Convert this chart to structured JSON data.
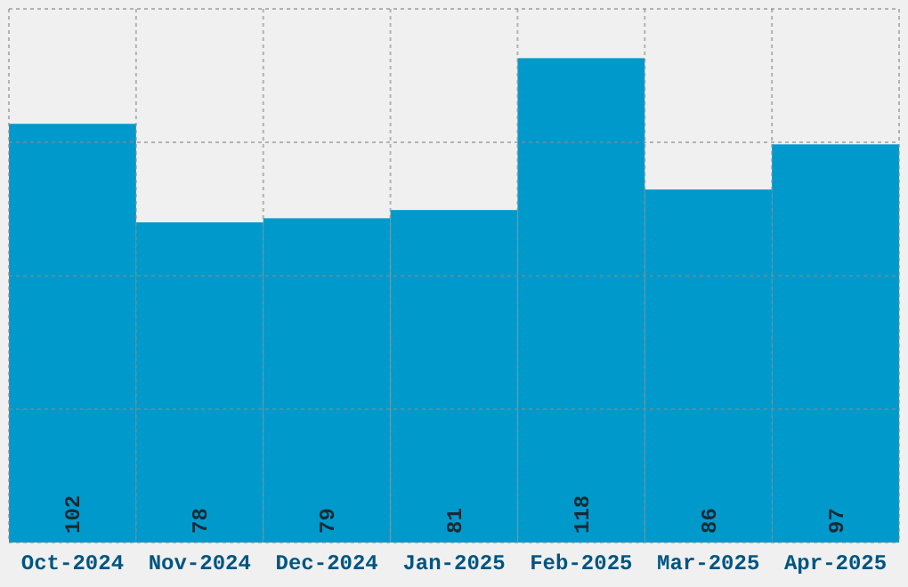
{
  "chart_data": {
    "type": "bar",
    "categories": [
      "Oct-2024",
      "Nov-2024",
      "Dec-2024",
      "Jan-2025",
      "Feb-2025",
      "Mar-2025",
      "Apr-2025"
    ],
    "values": [
      102,
      78,
      79,
      81,
      118,
      86,
      97
    ],
    "color": "#0099cc",
    "data_labels": true,
    "ylim": [
      0,
      130
    ],
    "yticks": [
      {
        "value": 0,
        "label": null
      },
      {
        "value": 32.5,
        "label": null
      },
      {
        "value": 65,
        "label": null
      },
      {
        "value": 97.5,
        "label": null
      },
      {
        "value": 130,
        "label": null
      }
    ],
    "tick_labels": "x",
    "grid": true
  }
}
